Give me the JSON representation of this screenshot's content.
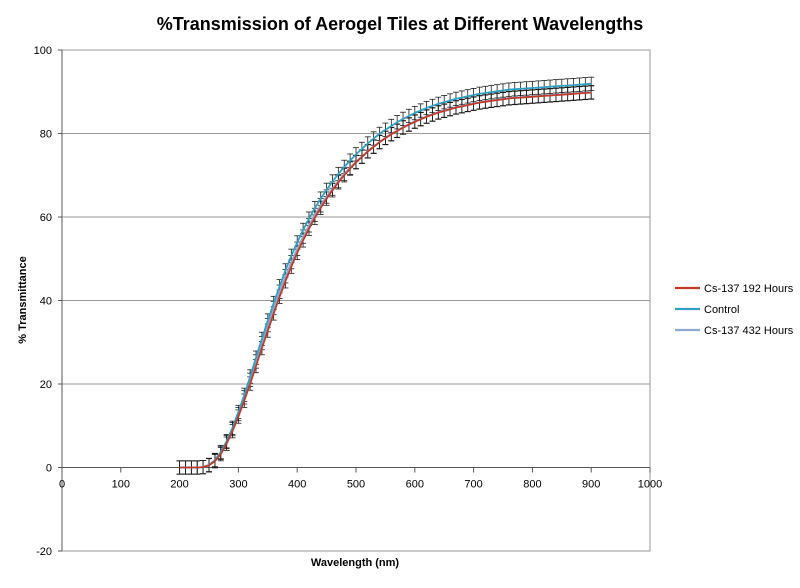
{
  "chart_data": {
    "type": "line",
    "title": "%Transmission of Aerogel Tiles at Different Wavelengths",
    "xlabel": "Wavelength (nm)",
    "ylabel": "% Transmittance",
    "xlim": [
      0,
      1000
    ],
    "ylim": [
      -20,
      100
    ],
    "xticks": [
      0,
      100,
      200,
      300,
      400,
      500,
      600,
      700,
      800,
      900,
      1000
    ],
    "yticks": [
      -20,
      0,
      20,
      40,
      60,
      80,
      100
    ],
    "grid": "horizontal",
    "legend_position": "right",
    "error_bars": true,
    "error_bar_size": 1.6,
    "x": [
      200,
      210,
      220,
      230,
      240,
      250,
      260,
      270,
      280,
      290,
      300,
      310,
      320,
      330,
      340,
      350,
      360,
      370,
      380,
      390,
      400,
      410,
      420,
      430,
      440,
      450,
      460,
      470,
      480,
      490,
      500,
      510,
      520,
      530,
      540,
      550,
      560,
      570,
      580,
      590,
      600,
      610,
      620,
      630,
      640,
      650,
      660,
      670,
      680,
      690,
      700,
      710,
      720,
      730,
      740,
      750,
      760,
      770,
      780,
      790,
      800,
      810,
      820,
      830,
      840,
      850,
      860,
      870,
      880,
      890,
      900
    ],
    "series": [
      {
        "name": "Cs-137 192 Hours",
        "color": "#c0392b",
        "values": [
          0.0,
          0.0,
          0.0,
          0.0,
          0.1,
          0.5,
          1.5,
          3.2,
          5.7,
          8.7,
          12.2,
          16.0,
          20.1,
          24.3,
          28.6,
          32.8,
          36.9,
          40.9,
          44.6,
          48.1,
          51.4,
          54.4,
          57.2,
          59.8,
          62.2,
          64.4,
          66.4,
          68.3,
          70.0,
          71.6,
          73.1,
          74.4,
          75.7,
          76.8,
          77.9,
          78.9,
          79.8,
          80.6,
          81.4,
          82.1,
          82.8,
          83.4,
          84.0,
          84.5,
          85.0,
          85.4,
          85.8,
          86.2,
          86.5,
          86.8,
          87.1,
          87.4,
          87.6,
          87.8,
          88.0,
          88.2,
          88.4,
          88.5,
          88.6,
          88.7,
          88.8,
          88.9,
          89.0,
          89.1,
          89.2,
          89.3,
          89.4,
          89.5,
          89.6,
          89.7,
          89.8
        ]
      },
      {
        "name": "Control",
        "color": "#31a0c0",
        "values": [
          0.0,
          0.0,
          0.0,
          0.0,
          0.1,
          0.6,
          1.8,
          3.7,
          6.3,
          9.5,
          13.3,
          17.4,
          21.8,
          26.3,
          30.8,
          35.2,
          39.4,
          43.4,
          47.2,
          50.7,
          53.9,
          56.9,
          59.6,
          62.1,
          64.4,
          66.5,
          68.5,
          70.3,
          72.0,
          73.5,
          75.0,
          76.3,
          77.6,
          78.8,
          79.9,
          80.9,
          81.8,
          82.7,
          83.5,
          84.2,
          84.9,
          85.5,
          86.1,
          86.6,
          87.1,
          87.5,
          87.9,
          88.3,
          88.6,
          88.9,
          89.2,
          89.5,
          89.7,
          89.9,
          90.1,
          90.3,
          90.5,
          90.6,
          90.7,
          90.8,
          90.9,
          91.0,
          91.1,
          91.2,
          91.3,
          91.4,
          91.5,
          91.6,
          91.7,
          91.8,
          91.9
        ]
      },
      {
        "name": "Cs-137 432 Hours",
        "color": "#8fa8cf",
        "values": [
          0.0,
          0.0,
          0.0,
          0.0,
          0.1,
          0.6,
          1.7,
          3.5,
          6.1,
          9.2,
          12.8,
          16.8,
          21.0,
          25.4,
          29.8,
          34.1,
          38.2,
          42.1,
          45.8,
          49.2,
          52.4,
          55.3,
          58.0,
          60.5,
          62.8,
          64.9,
          66.8,
          68.6,
          70.3,
          71.8,
          73.2,
          74.5,
          75.8,
          76.9,
          78.0,
          79.0,
          79.9,
          80.7,
          81.5,
          82.2,
          82.9,
          83.5,
          84.1,
          84.6,
          85.1,
          85.5,
          85.9,
          86.3,
          86.6,
          86.9,
          87.2,
          87.5,
          87.7,
          87.9,
          88.1,
          88.3,
          88.5,
          88.6,
          88.7,
          88.8,
          88.9,
          89.0,
          89.1,
          89.2,
          89.3,
          89.4,
          89.5,
          89.6,
          89.7,
          89.8,
          89.9
        ]
      }
    ]
  }
}
